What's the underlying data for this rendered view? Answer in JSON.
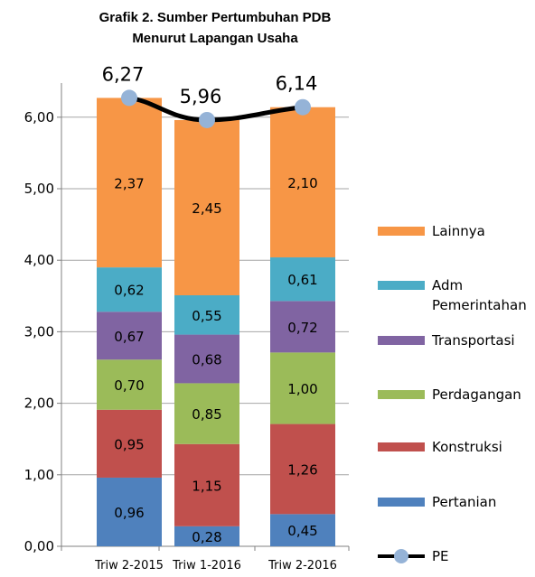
{
  "chart_data": {
    "type": "bar",
    "stacked": true,
    "title_line1": "Grafik 2. Sumber Pertumbuhan PDB",
    "title_line2": "Menurut Lapangan Usaha",
    "categories": [
      "Triw 2-2015",
      "Triw 1-2016",
      "Triw 2-2016"
    ],
    "ylim": [
      0,
      6.6
    ],
    "yticks": [
      "0,00",
      "1,00",
      "2,00",
      "3,00",
      "4,00",
      "5,00",
      "6,00"
    ],
    "series": [
      {
        "name": "Pertanian",
        "color": "#4f81bd",
        "values": [
          0.96,
          0.28,
          0.45
        ],
        "labels": [
          "0,96",
          "0,28",
          "0,45"
        ]
      },
      {
        "name": "Konstruksi",
        "color": "#c0504d",
        "values": [
          0.95,
          1.15,
          1.26
        ],
        "labels": [
          "0,95",
          "1,15",
          "1,26"
        ]
      },
      {
        "name": "Perdagangan",
        "color": "#9bbb59",
        "values": [
          0.7,
          0.85,
          1.0
        ],
        "labels": [
          "0,70",
          "0,85",
          "1,00"
        ]
      },
      {
        "name": "Transportasi",
        "color": "#8064a2",
        "values": [
          0.67,
          0.68,
          0.72
        ],
        "labels": [
          "0,67",
          "0,68",
          "0,72"
        ]
      },
      {
        "name": "Adm Pemerintahan",
        "name_lines": [
          "Adm",
          "Pemerintahan"
        ],
        "color": "#4bacc6",
        "values": [
          0.62,
          0.55,
          0.61
        ],
        "labels": [
          "0,62",
          "0,55",
          "0,61"
        ]
      },
      {
        "name": "Lainnya",
        "color": "#f79646",
        "values": [
          2.37,
          2.45,
          2.1
        ],
        "labels": [
          "2,37",
          "2,45",
          "2,10"
        ]
      }
    ],
    "line_series": {
      "name": "PE",
      "values": [
        6.27,
        5.96,
        6.14
      ],
      "labels": [
        "6,27",
        "5,96",
        "6,14"
      ],
      "line_color": "#000000",
      "marker_color": "#95b3d7"
    },
    "legend_order": [
      "Lainnya",
      "Adm Pemerintahan",
      "Transportasi",
      "Perdagangan",
      "Konstruksi",
      "Pertanian",
      "PE"
    ],
    "legend_position": "right",
    "grid": true
  }
}
